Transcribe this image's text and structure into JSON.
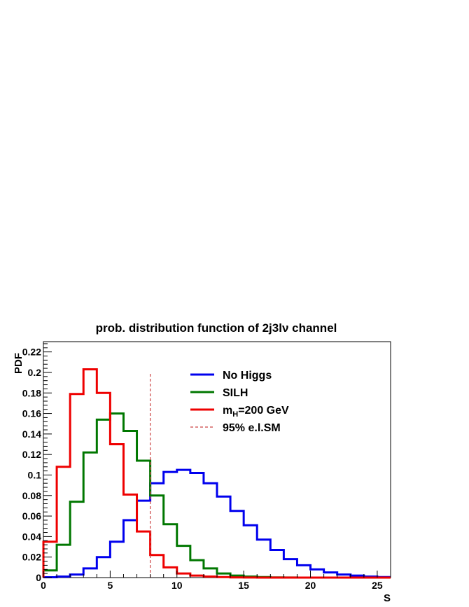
{
  "chart_data": {
    "type": "line",
    "title_main": "prob. distribution function of 2j3l",
    "title_greek": "ν",
    "title_tail": " channel",
    "xlabel": "S",
    "ylabel": "PDF",
    "xlim": [
      0,
      26
    ],
    "ylim": [
      0,
      0.23
    ],
    "x_ticks": [
      0,
      5,
      10,
      15,
      20,
      25
    ],
    "x_tick_labels": [
      "0",
      "5",
      "10",
      "15",
      "20",
      "25"
    ],
    "y_ticks": [
      0,
      0.02,
      0.04,
      0.06,
      0.08,
      0.1,
      0.12,
      0.14,
      0.16,
      0.18,
      0.2,
      0.22
    ],
    "y_tick_labels": [
      "0",
      "0.02",
      "0.04",
      "0.06",
      "0.08",
      "0.1",
      "0.12",
      "0.14",
      "0.16",
      "0.18",
      "0.2",
      "0.22"
    ],
    "bin_edges": [
      0,
      1,
      2,
      3,
      4,
      5,
      6,
      7,
      8,
      9,
      10,
      11,
      12,
      13,
      14,
      15,
      16,
      17,
      18,
      19,
      20,
      21,
      22,
      23,
      24,
      25,
      26
    ],
    "series": [
      {
        "name": "No Higgs",
        "color": "#0000ee",
        "values": [
          0.0003,
          0.001,
          0.003,
          0.009,
          0.02,
          0.035,
          0.056,
          0.075,
          0.092,
          0.103,
          0.105,
          0.102,
          0.092,
          0.079,
          0.065,
          0.051,
          0.037,
          0.027,
          0.018,
          0.012,
          0.008,
          0.005,
          0.003,
          0.002,
          0.001,
          0.0005
        ]
      },
      {
        "name": "SILH",
        "color": "#007700",
        "values": [
          0.007,
          0.032,
          0.074,
          0.122,
          0.154,
          0.16,
          0.143,
          0.114,
          0.08,
          0.052,
          0.031,
          0.017,
          0.009,
          0.004,
          0.002,
          0.001,
          0.0005,
          0.0002,
          0.0001,
          0,
          0,
          0,
          0,
          0,
          0,
          0
        ]
      },
      {
        "name_main": "m",
        "name_sub": "H",
        "name_tail": "=200 GeV",
        "color": "#ee0000",
        "values": [
          0.035,
          0.108,
          0.179,
          0.203,
          0.18,
          0.13,
          0.081,
          0.045,
          0.022,
          0.01,
          0.004,
          0.002,
          0.001,
          0.0005,
          0.0002,
          0.0001,
          0,
          0,
          0,
          0,
          0,
          0,
          0,
          0,
          0,
          0
        ]
      }
    ],
    "reference_line": {
      "name": "95% e.l.SM",
      "x": 8,
      "y_top": 0.2,
      "color": "#cc4444",
      "style": "dashed"
    },
    "legend_position": "top-right",
    "grid": false
  }
}
